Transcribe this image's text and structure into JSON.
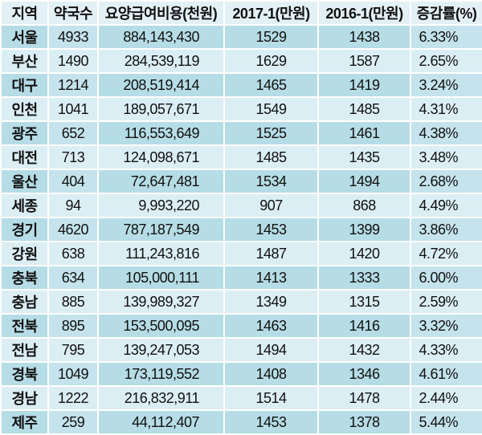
{
  "table": {
    "headers": [
      "지역",
      "약국수",
      "요양급여비용(천원)",
      "2017-1(만원)",
      "2016-1(만원)",
      "증감률(%)"
    ],
    "rows": [
      [
        "서울",
        "4933",
        "884,143,430",
        "1529",
        "1438",
        "6.33%"
      ],
      [
        "부산",
        "1490",
        "284,539,119",
        "1629",
        "1587",
        "2.65%"
      ],
      [
        "대구",
        "1214",
        "208,519,414",
        "1465",
        "1419",
        "3.24%"
      ],
      [
        "인천",
        "1041",
        "189,057,671",
        "1549",
        "1485",
        "4.31%"
      ],
      [
        "광주",
        "652",
        "116,553,649",
        "1525",
        "1461",
        "4.38%"
      ],
      [
        "대전",
        "713",
        "124,098,671",
        "1485",
        "1435",
        "3.48%"
      ],
      [
        "울산",
        "404",
        "72,647,481",
        "1534",
        "1494",
        "2.68%"
      ],
      [
        "세종",
        "94",
        "9,993,220",
        "907",
        "868",
        "4.49%"
      ],
      [
        "경기",
        "4620",
        "787,187,549",
        "1453",
        "1399",
        "3.86%"
      ],
      [
        "강원",
        "638",
        "111,243,816",
        "1487",
        "1420",
        "4.72%"
      ],
      [
        "충북",
        "634",
        "105,000,111",
        "1413",
        "1333",
        "6.00%"
      ],
      [
        "충남",
        "885",
        "139,989,327",
        "1349",
        "1315",
        "2.59%"
      ],
      [
        "전북",
        "895",
        "153,500,095",
        "1463",
        "1416",
        "3.32%"
      ],
      [
        "전남",
        "795",
        "139,247,053",
        "1494",
        "1432",
        "4.33%"
      ],
      [
        "경북",
        "1049",
        "173,119,552",
        "1408",
        "1346",
        "4.61%"
      ],
      [
        "경남",
        "1222",
        "216,832,911",
        "1514",
        "1478",
        "2.44%"
      ],
      [
        "제주",
        "259",
        "44,112,407",
        "1453",
        "1378",
        "5.44%"
      ]
    ]
  },
  "colors": {
    "header_bg": "#e3f1f6",
    "row_dark": "#b6dce6",
    "row_light": "#dbeef4"
  }
}
